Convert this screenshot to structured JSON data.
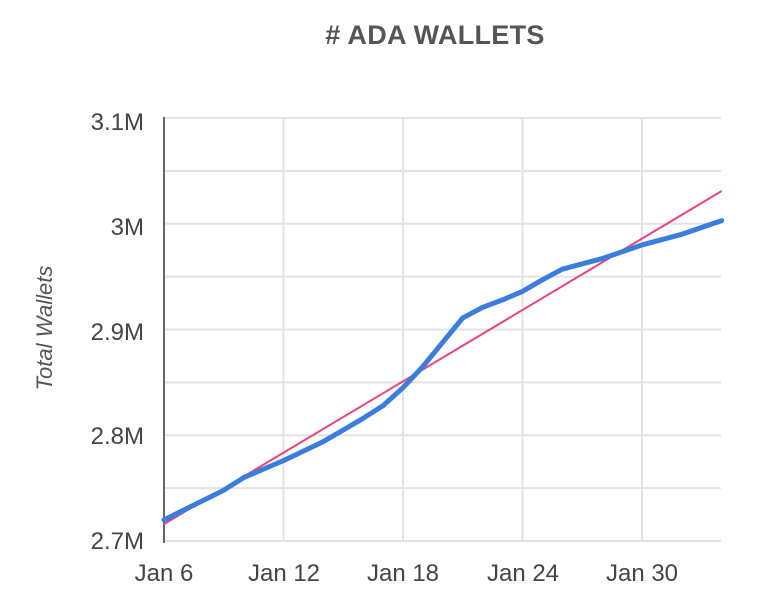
{
  "chart_data": {
    "type": "line",
    "title": "# ADA WALLETS",
    "xlabel": "",
    "ylabel": "Total Wallets",
    "ylim": [
      2700000,
      3100000
    ],
    "yticks": [
      "3.1M",
      "3M",
      "2.9M",
      "2.8M",
      "2.7M"
    ],
    "xticks": [
      "Jan 6",
      "Jan 12",
      "Jan 18",
      "Jan 24",
      "Jan 30"
    ],
    "grid": true,
    "legend": "none",
    "x": [
      "Jan 6",
      "Jan 9",
      "Jan 10",
      "Jan 12",
      "Jan 14",
      "Jan 15",
      "Jan 16",
      "Jan 17",
      "Jan 18",
      "Jan 19",
      "Jan 20",
      "Jan 21",
      "Jan 22",
      "Jan 23",
      "Jan 24",
      "Jan 25",
      "Jan 26",
      "Jan 28",
      "Jan 30",
      "Feb 1",
      "Feb 3"
    ],
    "series": [
      {
        "name": "Total Wallets",
        "color": "#3b7ddd",
        "values": [
          2720000,
          2748000,
          2760000,
          2776000,
          2794000,
          2805000,
          2816000,
          2828000,
          2845000,
          2865000,
          2888000,
          2911000,
          2921000,
          2928000,
          2936000,
          2947000,
          2957000,
          2967000,
          2980000,
          2990000,
          3003000
        ]
      },
      {
        "name": "Trendline",
        "color": "#e8457a",
        "style": "linear-trend",
        "values_endpoints": {
          "Jan 6": 2716000,
          "Feb 3": 3031000
        }
      }
    ]
  },
  "labels": {
    "title": "# ADA WALLETS",
    "ylabel": "Total Wallets",
    "yticks": [
      "3.1M",
      "3M",
      "2.9M",
      "2.8M",
      "2.7M"
    ],
    "xticks": [
      "Jan 6",
      "Jan 12",
      "Jan 18",
      "Jan 24",
      "Jan 30"
    ]
  },
  "colors": {
    "series": "#3b7ddd",
    "trend": "#e8457a",
    "grid": "#e3e3e3",
    "axis": "#666666",
    "text": "#444444"
  }
}
